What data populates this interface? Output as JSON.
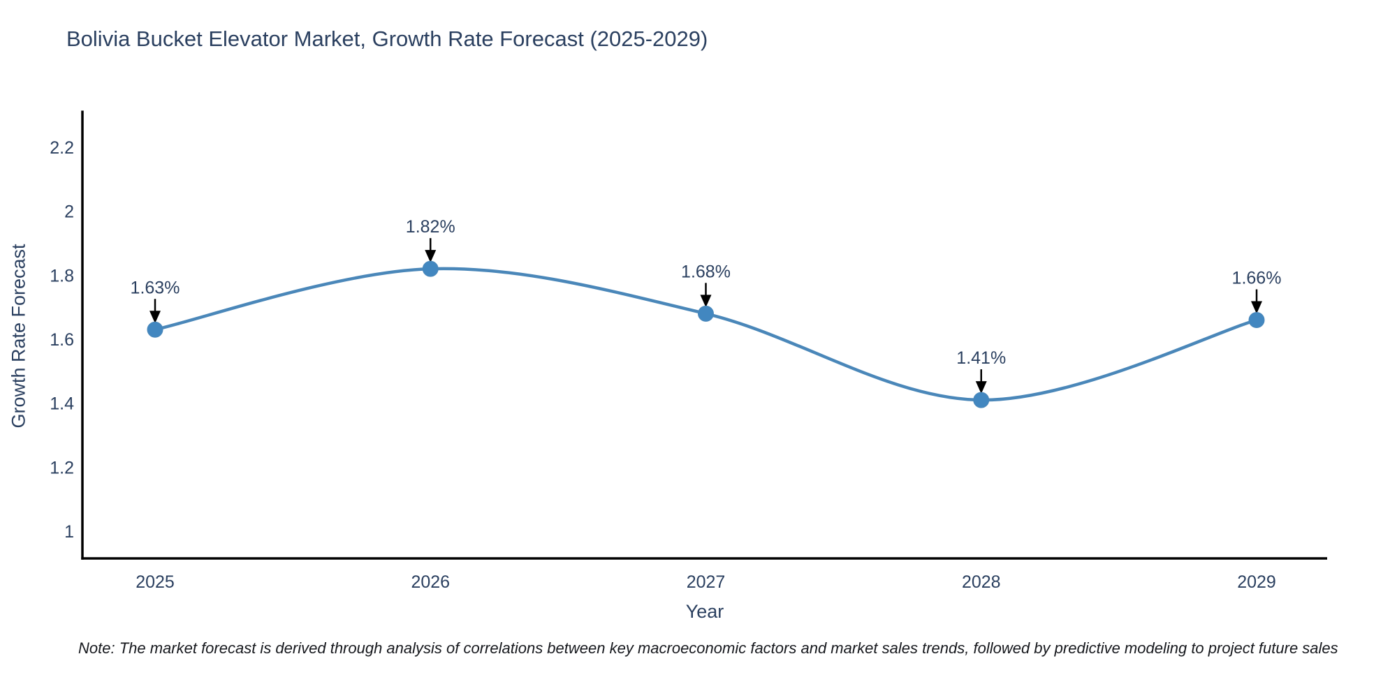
{
  "page": {
    "background": "#ffffff"
  },
  "chart_data": {
    "type": "line",
    "title": "Bolivia Bucket Elevator Market, Growth Rate Forecast (2025-2029)",
    "xlabel": "Year",
    "ylabel": "Growth Rate Forecast",
    "categories": [
      "2025",
      "2026",
      "2027",
      "2028",
      "2029"
    ],
    "series": [
      {
        "name": "Growth Rate Forecast",
        "values": [
          1.63,
          1.82,
          1.68,
          1.41,
          1.66
        ]
      }
    ],
    "point_labels": [
      "1.63%",
      "1.82%",
      "1.68%",
      "1.41%",
      "1.66%"
    ],
    "ytick_labels": [
      "1",
      "1.2",
      "1.4",
      "1.6",
      "1.8",
      "2",
      "2.2"
    ],
    "ytick_values": [
      1,
      1.2,
      1.4,
      1.6,
      1.8,
      2,
      2.2
    ],
    "ylim": [
      0.91,
      2.31
    ],
    "line_shape": "spline",
    "grid": false,
    "legend": "none",
    "colors": {
      "line": "#4a87b9",
      "marker": "#4287c0",
      "axis_line": "#000000",
      "text": "#2a3f5f",
      "annotation_arrow": "#000000"
    }
  },
  "note": {
    "text": "Note: The market forecast is derived through analysis of correlations between key macroeconomic factors and market sales trends, followed by predictive modeling to project future sales"
  }
}
